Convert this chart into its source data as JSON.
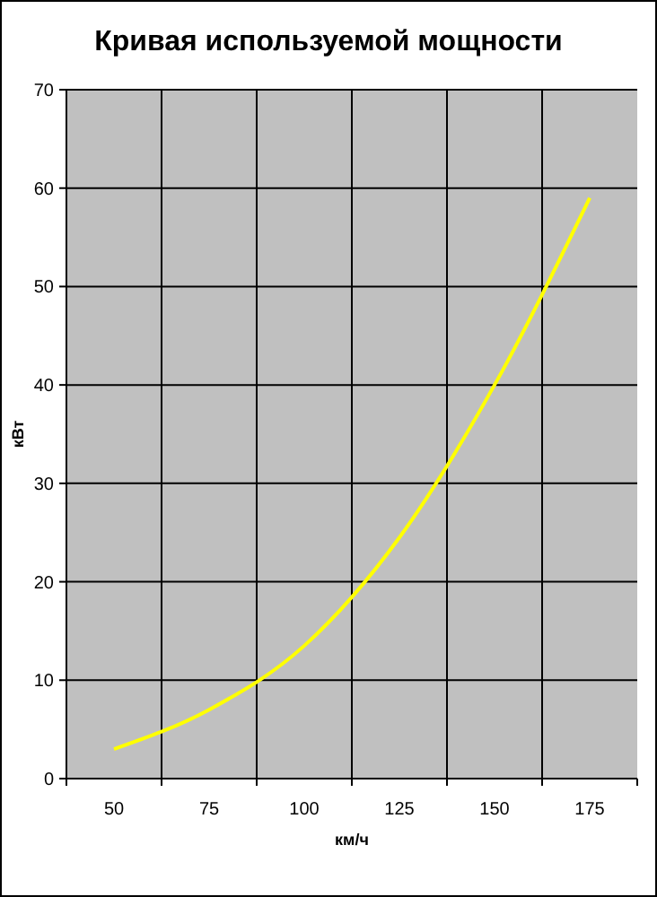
{
  "chart_data": {
    "type": "line",
    "title": "Кривая используемой мощности",
    "xlabel": "км/ч",
    "ylabel": "кВт",
    "categories": [
      "50",
      "75",
      "100",
      "125",
      "150",
      "175"
    ],
    "series": [
      {
        "color": "#ffff00",
        "values": [
          3,
          7,
          13.5,
          24.5,
          40,
          59
        ]
      }
    ],
    "ylim": [
      0,
      70
    ],
    "yticks": [
      0,
      10,
      20,
      30,
      40,
      50,
      60,
      70
    ],
    "grid": true,
    "marker": "none",
    "line_style": "solid"
  }
}
